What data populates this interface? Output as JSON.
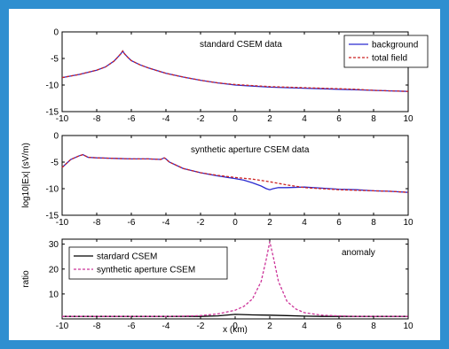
{
  "chart_data": [
    {
      "type": "line",
      "annotation": "standard CSEM data",
      "xlim": [
        -10,
        10
      ],
      "ylim": [
        -15,
        0
      ],
      "xticks": [
        -10,
        -8,
        -6,
        -4,
        -2,
        0,
        2,
        4,
        6,
        8,
        10
      ],
      "yticks": [
        0,
        -5,
        -10,
        -15
      ],
      "legend": "top-right",
      "series": [
        {
          "name": "background",
          "color": "#2a2ad0",
          "dash": "solid",
          "x": [
            -10,
            -9,
            -8,
            -7.5,
            -7,
            -6.8,
            -6.6,
            -6.5,
            -6.4,
            -6.2,
            -6,
            -5.5,
            -5,
            -4,
            -3,
            -2,
            -1,
            0,
            1,
            2,
            3,
            4,
            5,
            6,
            7,
            8,
            9,
            10
          ],
          "y": [
            -8.6,
            -8,
            -7.2,
            -6.6,
            -5.5,
            -4.8,
            -4.1,
            -3.6,
            -4.1,
            -4.8,
            -5.4,
            -6.2,
            -6.8,
            -7.8,
            -8.5,
            -9.1,
            -9.6,
            -10,
            -10.2,
            -10.4,
            -10.5,
            -10.6,
            -10.7,
            -10.8,
            -10.9,
            -11,
            -11.1,
            -11.2
          ]
        },
        {
          "name": "total field",
          "color": "#cc2222",
          "dash": "dashed",
          "x": [
            -10,
            -9,
            -8,
            -7.5,
            -7,
            -6.8,
            -6.6,
            -6.5,
            -6.4,
            -6.2,
            -6,
            -5.5,
            -5,
            -4,
            -3,
            -2,
            -1,
            0,
            1,
            2,
            3,
            4,
            5,
            6,
            7,
            8,
            9,
            10
          ],
          "y": [
            -8.6,
            -8,
            -7.2,
            -6.6,
            -5.5,
            -4.8,
            -4.1,
            -3.6,
            -4.1,
            -4.8,
            -5.4,
            -6.2,
            -6.8,
            -7.8,
            -8.5,
            -9.1,
            -9.6,
            -9.9,
            -10.1,
            -10.3,
            -10.4,
            -10.5,
            -10.6,
            -10.7,
            -10.8,
            -11,
            -11.1,
            -11.2
          ]
        }
      ]
    },
    {
      "type": "line",
      "annotation": "synthetic aperture CSEM data",
      "ylabel": "log10|Ex| (sV/m)",
      "xlim": [
        -10,
        10
      ],
      "ylim": [
        -15,
        0
      ],
      "xticks": [
        -10,
        -8,
        -6,
        -4,
        -2,
        0,
        2,
        4,
        6,
        8,
        10
      ],
      "yticks": [
        0,
        -5,
        -10,
        -15
      ],
      "series": [
        {
          "name": "background",
          "color": "#2a2ad0",
          "dash": "solid",
          "x": [
            -10,
            -9.5,
            -9,
            -8.8,
            -8.5,
            -8,
            -7,
            -6,
            -5,
            -4.3,
            -4.1,
            -4,
            -3.8,
            -3,
            -2,
            -1,
            0,
            0.5,
            1,
            1.5,
            1.8,
            2,
            2.2,
            2.5,
            3,
            4,
            5,
            6,
            7,
            8,
            9,
            10
          ],
          "y": [
            -6,
            -4.5,
            -3.8,
            -3.6,
            -4.1,
            -4.2,
            -4.3,
            -4.4,
            -4.4,
            -4.5,
            -4.2,
            -4.4,
            -5,
            -6.2,
            -7,
            -7.6,
            -8.1,
            -8.4,
            -8.9,
            -9.5,
            -10,
            -10.2,
            -10,
            -9.8,
            -9.8,
            -9.7,
            -9.9,
            -10.1,
            -10.2,
            -10.4,
            -10.5,
            -10.7
          ]
        },
        {
          "name": "total field",
          "color": "#cc2222",
          "dash": "dashed",
          "x": [
            -10,
            -9.5,
            -9,
            -8.8,
            -8.5,
            -8,
            -7,
            -6,
            -5,
            -4.3,
            -4.1,
            -4,
            -3.8,
            -3,
            -2,
            -1,
            0,
            1,
            2,
            3,
            4,
            5,
            6,
            7,
            8,
            9,
            10
          ],
          "y": [
            -6,
            -4.5,
            -3.8,
            -3.6,
            -4.1,
            -4.2,
            -4.3,
            -4.4,
            -4.4,
            -4.5,
            -4.2,
            -4.4,
            -5,
            -6.2,
            -7,
            -7.5,
            -7.9,
            -8.2,
            -8.7,
            -9.3,
            -9.8,
            -10,
            -10.2,
            -10.3,
            -10.4,
            -10.5,
            -10.7
          ]
        }
      ]
    },
    {
      "type": "line",
      "annotation": "anomaly",
      "xlabel": "x (km)",
      "ylabel": "ratio",
      "xlim": [
        -10,
        10
      ],
      "ylim": [
        0,
        32
      ],
      "xticks": [
        -10,
        -8,
        -6,
        -4,
        -2,
        0,
        2,
        4,
        6,
        8,
        10
      ],
      "yticks": [
        10,
        20,
        30
      ],
      "legend": "top-left",
      "series": [
        {
          "name": "stardard CSEM",
          "color": "#000000",
          "dash": "solid",
          "x": [
            -10,
            -2,
            -1,
            0,
            1,
            2,
            3,
            4,
            5,
            10
          ],
          "y": [
            1,
            1,
            1.2,
            1.8,
            1.6,
            1.5,
            1.3,
            1.1,
            1,
            1
          ]
        },
        {
          "name": "synthetic aperture CSEM",
          "color": "#cc3399",
          "dash": "dashed",
          "x": [
            -10,
            -4,
            -3,
            -2,
            -1,
            0,
            0.5,
            1,
            1.5,
            1.8,
            2,
            2.2,
            2.5,
            3,
            3.5,
            4,
            5,
            6,
            7,
            10
          ],
          "y": [
            1,
            1,
            1.1,
            1.3,
            2,
            3.5,
            5,
            8,
            15,
            24,
            31,
            25,
            15,
            7,
            4,
            2.5,
            1.5,
            1.2,
            1,
            1
          ]
        }
      ]
    }
  ]
}
